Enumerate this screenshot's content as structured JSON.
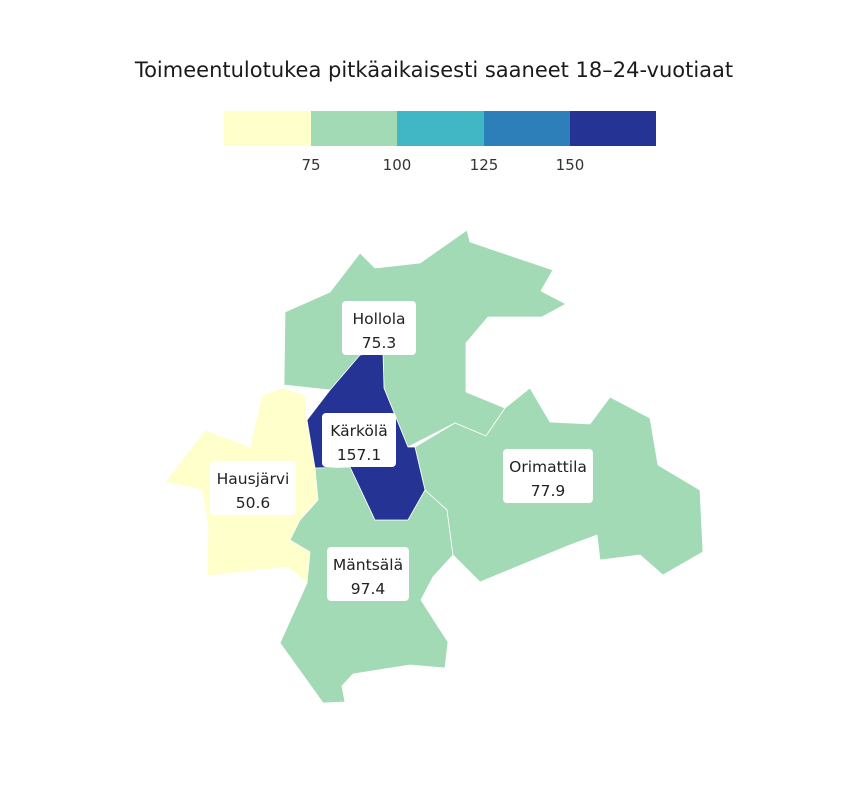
{
  "title": "Toimeentulotukea pitkäaikaisesti saaneet 18–24-vuotiaat",
  "legend": {
    "colors": [
      "#ffffcc",
      "#a1dab4",
      "#41b6c4",
      "#2c7fb8",
      "#253494"
    ],
    "ticks": [
      "75",
      "100",
      "125",
      "150"
    ]
  },
  "regions": [
    {
      "id": "hollola",
      "name": "Hollola",
      "value": "75.3",
      "class_index": 1
    },
    {
      "id": "karkola",
      "name": "Kärkölä",
      "value": "157.1",
      "class_index": 4
    },
    {
      "id": "hausjarvi",
      "name": "Hausjärvi",
      "value": "50.6",
      "class_index": 0
    },
    {
      "id": "orimattila",
      "name": "Orimattila",
      "value": "77.9",
      "class_index": 1
    },
    {
      "id": "mantsala",
      "name": "Mäntsälä",
      "value": "97.4",
      "class_index": 1
    }
  ]
}
